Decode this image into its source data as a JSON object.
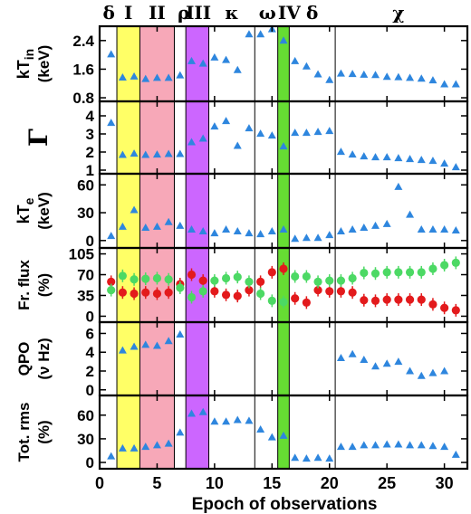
{
  "chart_data": {
    "type": "scatter",
    "xlabel": "Epoch of observations",
    "xlim": [
      0,
      32
    ],
    "xticks": [
      "0",
      "5",
      "10",
      "15",
      "20",
      "25",
      "30"
    ],
    "colors": {
      "blue": "#2e86de",
      "red": "#e31a1c",
      "green": "#4cd964",
      "bands": [
        "#ffff66",
        "#f7a8b8",
        "#cc66ff",
        "#66dd33"
      ]
    },
    "top_labels": [
      {
        "text": "δ",
        "x": 0.8
      },
      {
        "text": "I",
        "x": 2.5
      },
      {
        "text": "II",
        "x": 5.0
      },
      {
        "text": "ρ",
        "x": 7.3
      },
      {
        "text": "III",
        "x": 8.6
      },
      {
        "text": "κ",
        "x": 11.5
      },
      {
        "text": "ω",
        "x": 14.6
      },
      {
        "text": "IV",
        "x": 16.5
      },
      {
        "text": "δ",
        "x": 18.5
      },
      {
        "text": "χ",
        "x": 26.0
      }
    ],
    "bands": [
      {
        "x": [
          1.5,
          3.5
        ],
        "color": "yellow"
      },
      {
        "x": [
          3.5,
          6.5
        ],
        "color": "pink"
      },
      {
        "x": [
          7.5,
          9.5
        ],
        "color": "violet"
      },
      {
        "x": [
          15.5,
          16.5
        ],
        "color": "green"
      }
    ],
    "separators": [
      6.5,
      9.5,
      13.5,
      20.5
    ],
    "panels": [
      {
        "ylabel": [
          "kT",
          "in",
          "(keV)"
        ],
        "ylim": [
          0.7,
          2.8
        ],
        "yticks": [
          "0.8",
          "1.6",
          "2.4"
        ],
        "series": [
          {
            "color": "blue",
            "points": [
              [
                1,
                2.02
              ],
              [
                2,
                1.37
              ],
              [
                3,
                1.4
              ],
              [
                4,
                1.33
              ],
              [
                5,
                1.36
              ],
              [
                6,
                1.36
              ],
              [
                7,
                1.43
              ],
              [
                8,
                1.83
              ],
              [
                9,
                1.76
              ],
              [
                10,
                1.93
              ],
              [
                11,
                1.86
              ],
              [
                12,
                1.58
              ],
              [
                13,
                2.58
              ],
              [
                14,
                2.58
              ],
              [
                15,
                2.72
              ],
              [
                16,
                2.4
              ],
              [
                17,
                1.83
              ],
              [
                18,
                1.68
              ],
              [
                19,
                1.46
              ],
              [
                20,
                1.3
              ],
              [
                21,
                1.48
              ],
              [
                22,
                1.47
              ],
              [
                23,
                1.45
              ],
              [
                24,
                1.44
              ],
              [
                25,
                1.39
              ],
              [
                26,
                1.38
              ],
              [
                27,
                1.36
              ],
              [
                28,
                1.34
              ],
              [
                29,
                1.29
              ],
              [
                30,
                1.18
              ],
              [
                31,
                1.18
              ]
            ]
          }
        ]
      },
      {
        "ylabel": [
          "Γ"
        ],
        "ylim": [
          0.8,
          4.8
        ],
        "yticks": [
          "1",
          "2",
          "3",
          "4"
        ],
        "series": [
          {
            "color": "blue",
            "points": [
              [
                1,
                3.62
              ],
              [
                2,
                1.85
              ],
              [
                3,
                1.92
              ],
              [
                4,
                1.85
              ],
              [
                5,
                1.87
              ],
              [
                6,
                1.9
              ],
              [
                7,
                1.9
              ],
              [
                8,
                2.55
              ],
              [
                9,
                2.75
              ],
              [
                10,
                3.42
              ],
              [
                11,
                3.72
              ],
              [
                12,
                2.35
              ],
              [
                13,
                3.32
              ],
              [
                14,
                3.02
              ],
              [
                15,
                2.92
              ],
              [
                16,
                2.32
              ],
              [
                17,
                3.07
              ],
              [
                18,
                3.07
              ],
              [
                19,
                3.12
              ],
              [
                20,
                3.17
              ],
              [
                21,
                2.02
              ],
              [
                22,
                1.87
              ],
              [
                23,
                1.77
              ],
              [
                24,
                1.72
              ],
              [
                25,
                1.72
              ],
              [
                26,
                1.67
              ],
              [
                27,
                1.62
              ],
              [
                28,
                1.57
              ],
              [
                29,
                1.52
              ],
              [
                30,
                1.37
              ],
              [
                31,
                1.17
              ]
            ]
          }
        ]
      },
      {
        "ylabel": [
          "kT",
          "e",
          "(keV)"
        ],
        "ylim": [
          -8,
          72
        ],
        "yticks": [
          "0",
          "30",
          "60"
        ],
        "series": [
          {
            "color": "blue",
            "points": [
              [
                1,
                5
              ],
              [
                2,
                15
              ],
              [
                3,
                33
              ],
              [
                4,
                14
              ],
              [
                5,
                15
              ],
              [
                6,
                20
              ],
              [
                7,
                16
              ],
              [
                8,
                12
              ],
              [
                9,
                10
              ],
              [
                10,
                8
              ],
              [
                11,
                12
              ],
              [
                12,
                10
              ],
              [
                13,
                8
              ],
              [
                14,
                7
              ],
              [
                15,
                10
              ],
              [
                16,
                12
              ],
              [
                17,
                2
              ],
              [
                18,
                3
              ],
              [
                19,
                3
              ],
              [
                20,
                6
              ],
              [
                21,
                10
              ],
              [
                22,
                12
              ],
              [
                23,
                14
              ],
              [
                24,
                16
              ],
              [
                25,
                18
              ],
              [
                26,
                58
              ],
              [
                27,
                28
              ],
              [
                28,
                12
              ],
              [
                29,
                12
              ],
              [
                30,
                12
              ],
              [
                31,
                11
              ]
            ]
          }
        ]
      },
      {
        "ylabel": [
          "Fr. flux",
          "(%)"
        ],
        "ylim": [
          -10,
          115
        ],
        "yticks": [
          "0",
          "35",
          "70",
          "105"
        ],
        "series": [
          {
            "color": "red",
            "points": [
              [
                1,
                58
              ],
              [
                2,
                40
              ],
              [
                3,
                38
              ],
              [
                4,
                40
              ],
              [
                5,
                38
              ],
              [
                6,
                40
              ],
              [
                7,
                54
              ],
              [
                8,
                70
              ],
              [
                9,
                60
              ],
              [
                10,
                42
              ],
              [
                11,
                36
              ],
              [
                12,
                34
              ],
              [
                13,
                44
              ],
              [
                14,
                58
              ],
              [
                15,
                74
              ],
              [
                16,
                80
              ],
              [
                17,
                30
              ],
              [
                18,
                23
              ],
              [
                19,
                44
              ],
              [
                20,
                42
              ],
              [
                21,
                42
              ],
              [
                22,
                40
              ],
              [
                23,
                27
              ],
              [
                24,
                26
              ],
              [
                25,
                28
              ],
              [
                26,
                28
              ],
              [
                27,
                28
              ],
              [
                28,
                28
              ],
              [
                29,
                20
              ],
              [
                30,
                14
              ],
              [
                31,
                10
              ]
            ]
          },
          {
            "color": "green",
            "points": [
              [
                1,
                44
              ],
              [
                2,
                68
              ],
              [
                3,
                62
              ],
              [
                4,
                63
              ],
              [
                5,
                64
              ],
              [
                6,
                62
              ],
              [
                7,
                48
              ],
              [
                8,
                32
              ],
              [
                9,
                42
              ],
              [
                10,
                60
              ],
              [
                11,
                64
              ],
              [
                12,
                66
              ],
              [
                13,
                58
              ],
              [
                14,
                38
              ],
              [
                15,
                26
              ],
              [
                16,
                24
              ],
              [
                17,
                67
              ],
              [
                18,
                67
              ],
              [
                19,
                58
              ],
              [
                20,
                60
              ],
              [
                21,
                60
              ],
              [
                22,
                64
              ],
              [
                23,
                73
              ],
              [
                24,
                72
              ],
              [
                25,
                74
              ],
              [
                26,
                74
              ],
              [
                27,
                74
              ],
              [
                28,
                74
              ],
              [
                29,
                80
              ],
              [
                30,
                86
              ],
              [
                31,
                90
              ]
            ]
          }
        ]
      },
      {
        "ylabel": [
          "QPO",
          "(ν Hz)"
        ],
        "ylim": [
          -0.6,
          7.2
        ],
        "yticks": [
          "0",
          "2",
          "4",
          "6"
        ],
        "series": [
          {
            "color": "blue",
            "points": [
              [
                2,
                4.2
              ],
              [
                3,
                4.6
              ],
              [
                4,
                4.8
              ],
              [
                5,
                4.7
              ],
              [
                6,
                5.2
              ],
              [
                7,
                5.9
              ],
              [
                21,
                3.4
              ],
              [
                22,
                3.8
              ],
              [
                23,
                3.2
              ],
              [
                24,
                2.5
              ],
              [
                25,
                2.8
              ],
              [
                26,
                3.0
              ],
              [
                27,
                2.0
              ],
              [
                28,
                1.5
              ],
              [
                29,
                1.8
              ],
              [
                30,
                2.0
              ]
            ]
          }
        ]
      },
      {
        "ylabel": [
          "Tot. rms",
          "(%)"
        ],
        "ylim": [
          -8,
          85
        ],
        "yticks": [
          "0",
          "30",
          "60"
        ],
        "series": [
          {
            "color": "blue",
            "points": [
              [
                1,
                8
              ],
              [
                2,
                18
              ],
              [
                3,
                18
              ],
              [
                4,
                20
              ],
              [
                5,
                22
              ],
              [
                6,
                24
              ],
              [
                7,
                38
              ],
              [
                8,
                62
              ],
              [
                9,
                64
              ],
              [
                10,
                52
              ],
              [
                11,
                52
              ],
              [
                12,
                54
              ],
              [
                13,
                53
              ],
              [
                14,
                42
              ],
              [
                15,
                32
              ],
              [
                16,
                34
              ],
              [
                17,
                6
              ],
              [
                18,
                5
              ],
              [
                19,
                6
              ],
              [
                20,
                5
              ],
              [
                21,
                20
              ],
              [
                22,
                20
              ],
              [
                23,
                22
              ],
              [
                24,
                22
              ],
              [
                25,
                23
              ],
              [
                26,
                23
              ],
              [
                27,
                22
              ],
              [
                28,
                22
              ],
              [
                29,
                21
              ],
              [
                30,
                20
              ],
              [
                31,
                10
              ]
            ]
          }
        ]
      }
    ]
  }
}
